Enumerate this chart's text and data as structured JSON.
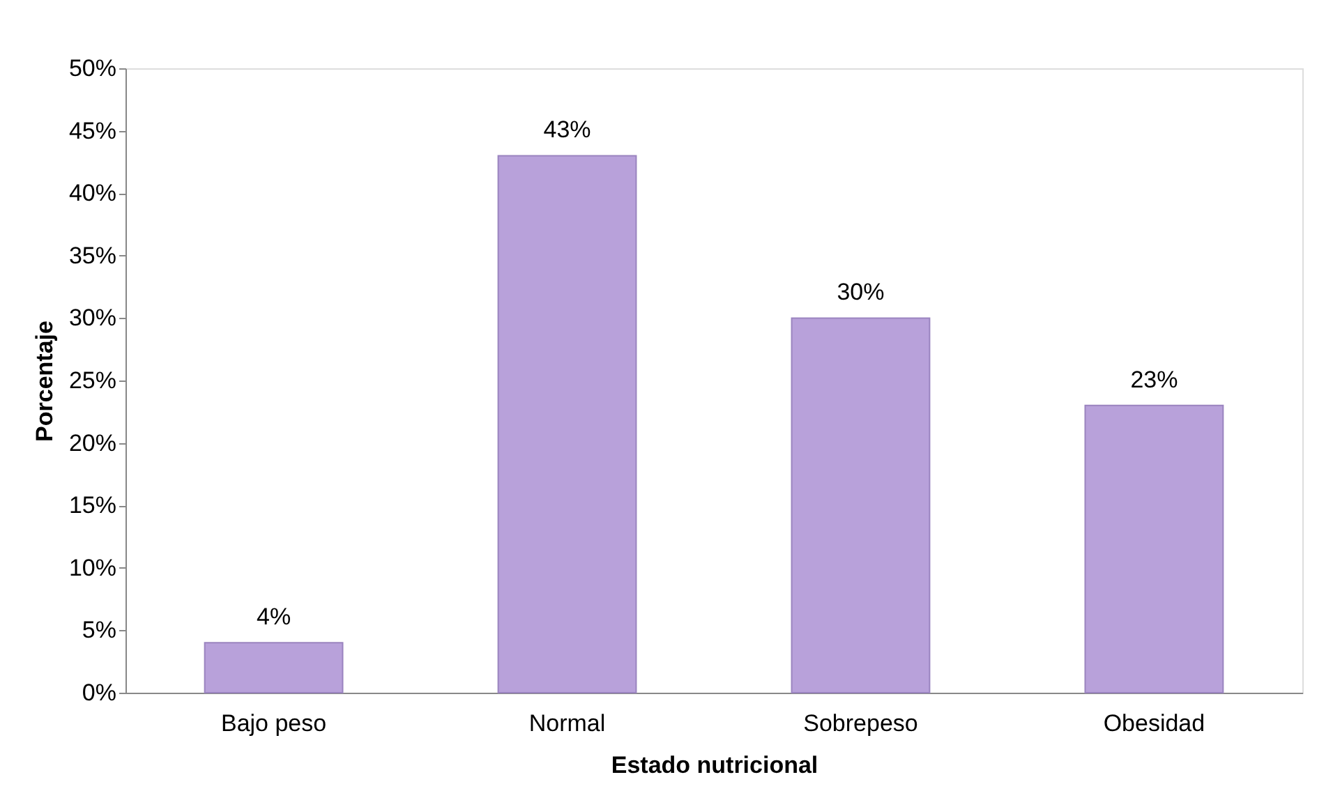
{
  "chart_data": {
    "type": "bar",
    "xlabel": "Estado nutricional",
    "ylabel": "Porcentaje",
    "categories": [
      "Bajo peso",
      "Normal",
      "Sobrepeso",
      "Obesidad"
    ],
    "values": [
      4,
      43,
      30,
      23
    ],
    "value_labels": [
      "4%",
      "43%",
      "30%",
      "23%"
    ],
    "color": "#b8a1da",
    "ylim": [
      0,
      50
    ],
    "yticks": [
      {
        "value": 0,
        "label": "0%"
      },
      {
        "value": 5,
        "label": "5%"
      },
      {
        "value": 10,
        "label": "10%"
      },
      {
        "value": 15,
        "label": "15%"
      },
      {
        "value": 20,
        "label": "20%"
      },
      {
        "value": 25,
        "label": "25%"
      },
      {
        "value": 30,
        "label": "30%"
      },
      {
        "value": 35,
        "label": "35%"
      },
      {
        "value": 40,
        "label": "40%"
      },
      {
        "value": 45,
        "label": "45%"
      },
      {
        "value": 50,
        "label": "50%"
      }
    ],
    "grid": false
  }
}
